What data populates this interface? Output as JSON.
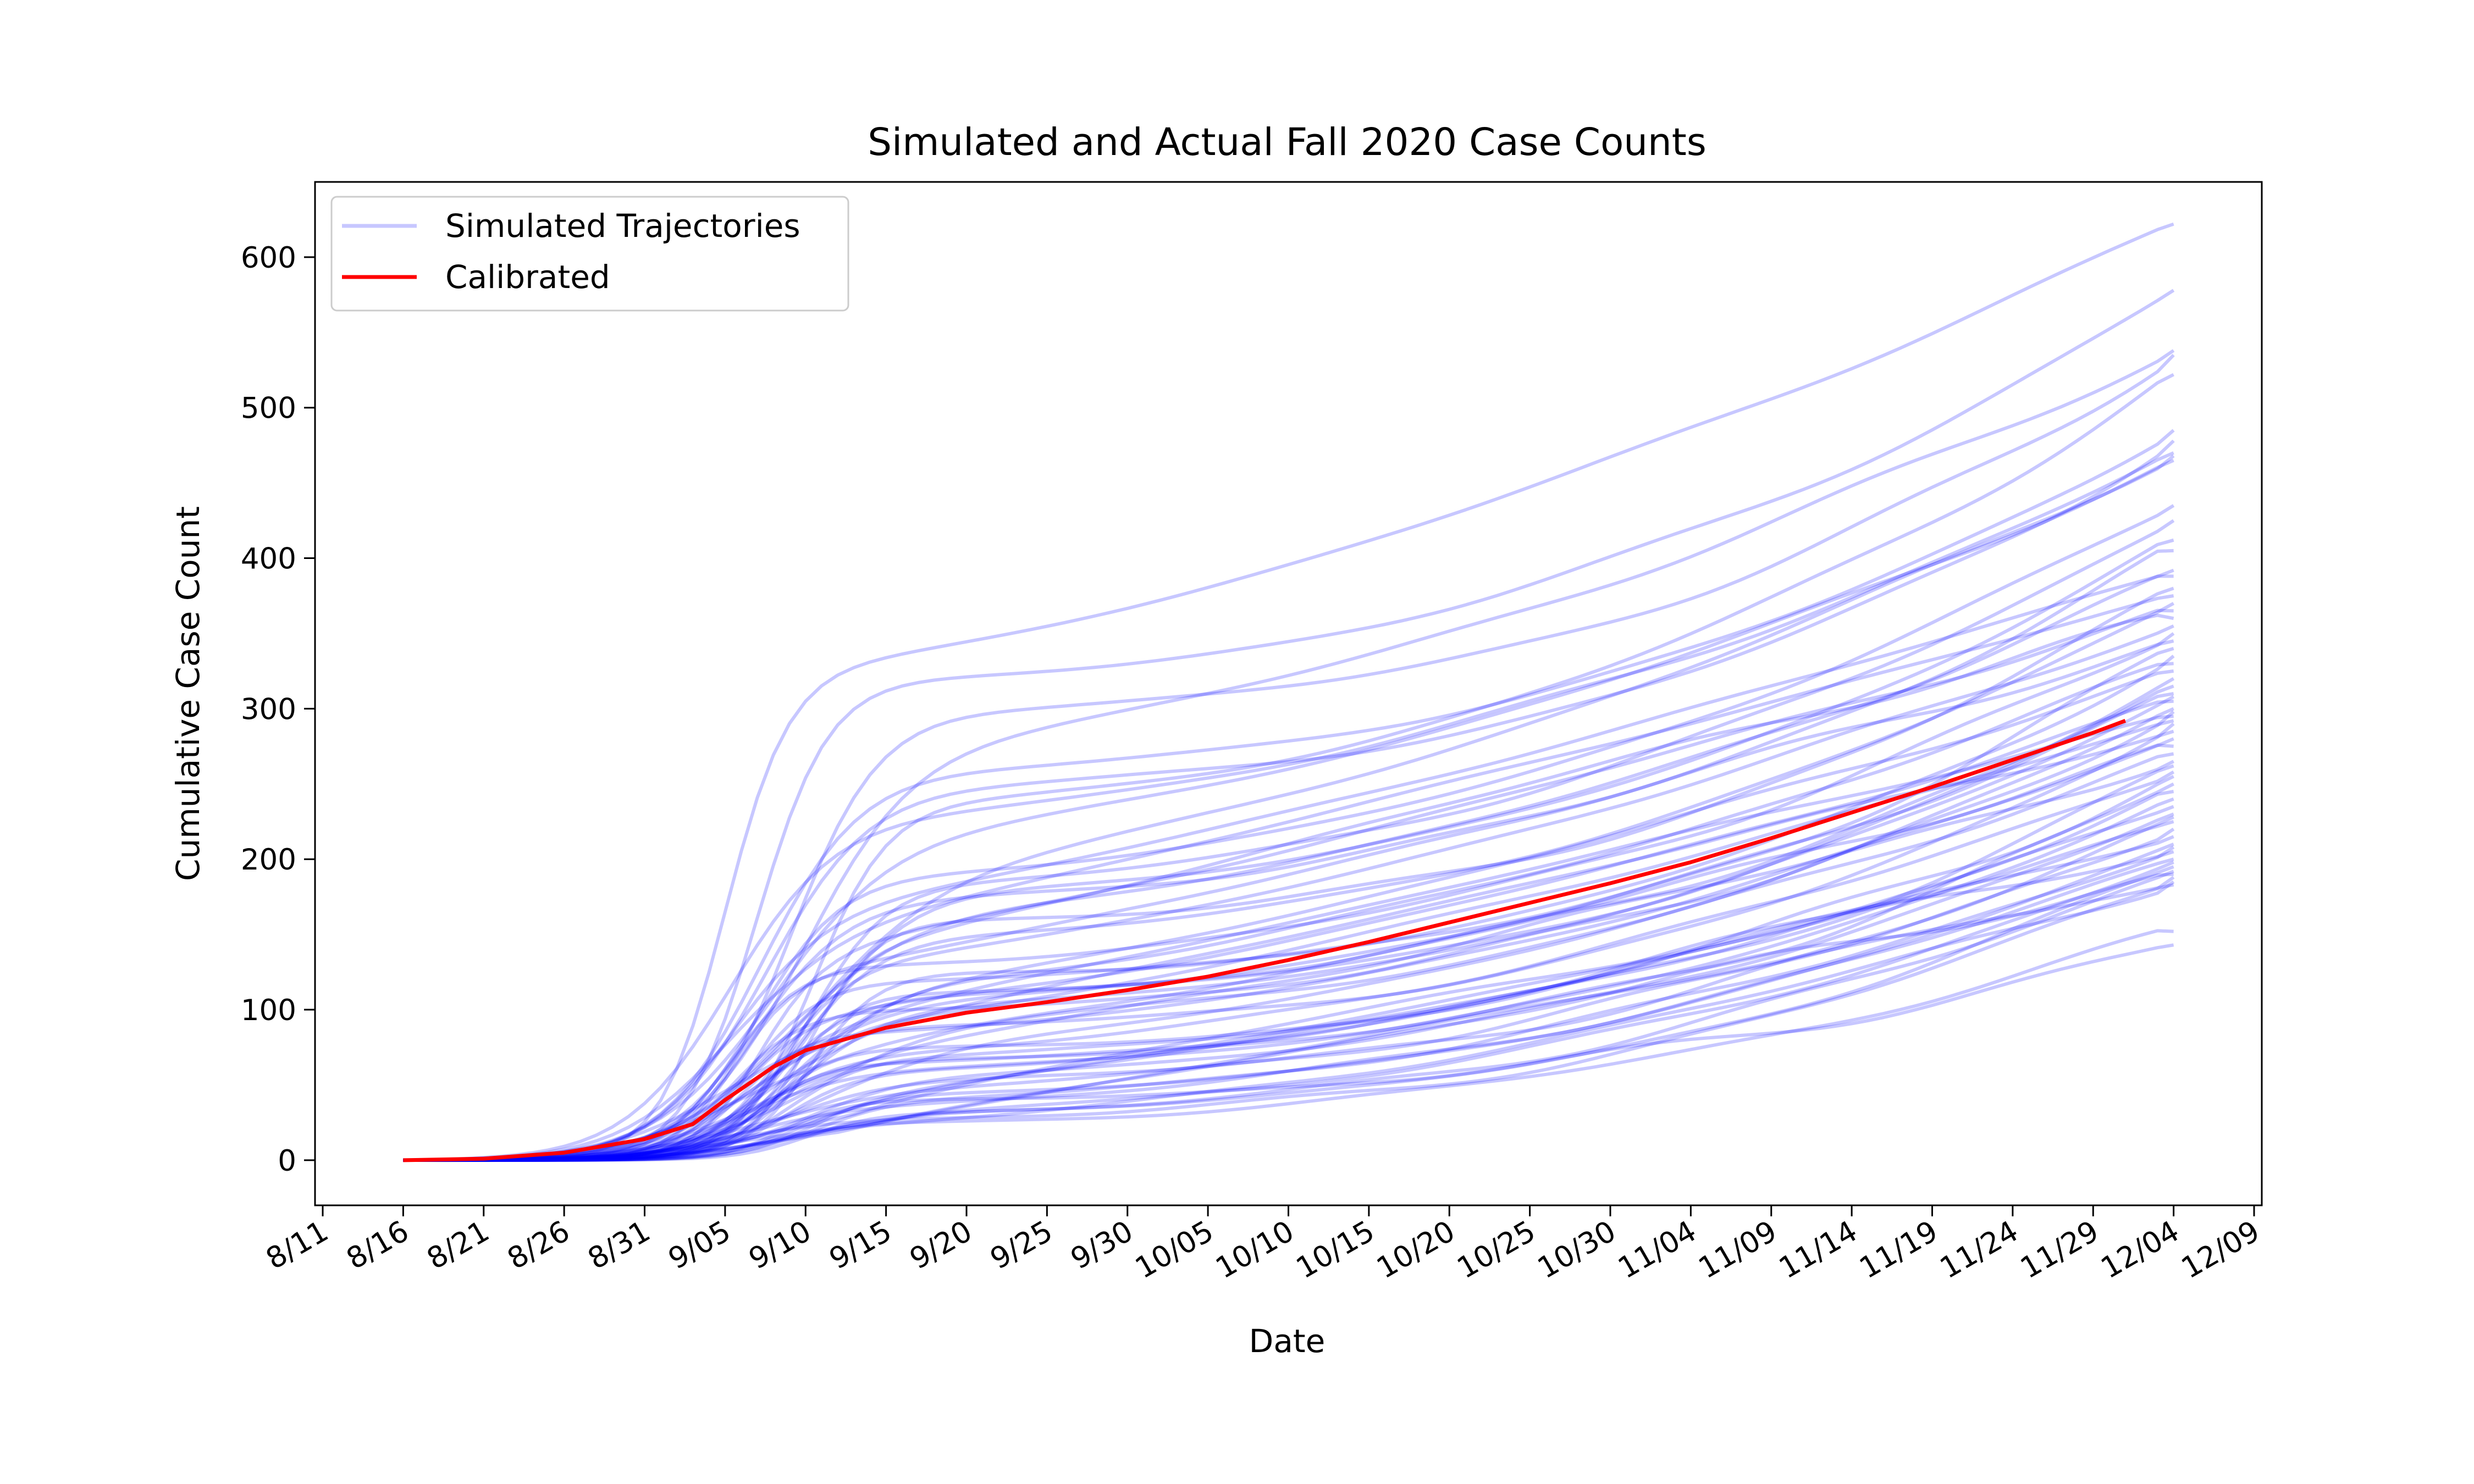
{
  "chart_data": {
    "type": "line",
    "title": "Simulated and Actual Fall 2020 Case Counts",
    "xlabel": "Date",
    "ylabel": "Cumulative Case Count",
    "x_ticks": [
      "8/11",
      "8/16",
      "8/21",
      "8/26",
      "8/31",
      "9/05",
      "9/10",
      "9/15",
      "9/20",
      "9/25",
      "9/30",
      "10/05",
      "10/10",
      "10/15",
      "10/20",
      "10/25",
      "10/30",
      "11/04",
      "11/09",
      "11/14",
      "11/19",
      "11/24",
      "11/29",
      "12/04",
      "12/09"
    ],
    "y_ticks": [
      "0",
      "100",
      "200",
      "300",
      "400",
      "500",
      "600"
    ],
    "xlim": [
      "2020-08-11",
      "2020-12-09"
    ],
    "ylim": [
      -30,
      650
    ],
    "grid": false,
    "legend_position": "top-left",
    "legend": [
      {
        "label": "Simulated Trajectories",
        "color": "#0000ff",
        "opacity": 0.22
      },
      {
        "label": "Calibrated",
        "color": "#ff0000"
      }
    ],
    "series_colors": {
      "simulated": "#0000ff",
      "calibrated": "#ff0000"
    },
    "simulated_trajectories": {
      "x_start": "2020-08-16",
      "x_end": "2020-12-04",
      "final_values": [
        622,
        578,
        538,
        535,
        522,
        485,
        478,
        470,
        468,
        465,
        435,
        425,
        412,
        405,
        392,
        388,
        380,
        375,
        370,
        365,
        360,
        355,
        350,
        345,
        340,
        335,
        330,
        325,
        320,
        315,
        310,
        308,
        305,
        300,
        298,
        295,
        292,
        290,
        285,
        280,
        275,
        270,
        265,
        262,
        258,
        255,
        250,
        245,
        240,
        235,
        230,
        228,
        225,
        220,
        215,
        210,
        208,
        205,
        200,
        198,
        195,
        192,
        190,
        188,
        185,
        183,
        152,
        143
      ],
      "plateau_values": [
        330,
        320,
        280,
        300,
        240,
        260,
        250,
        230,
        200,
        220,
        190,
        185,
        180,
        175,
        170,
        165,
        160,
        155,
        150,
        145,
        140,
        135,
        130,
        128,
        125,
        120,
        118,
        115,
        112,
        110,
        108,
        105,
        102,
        100,
        98,
        95,
        92,
        90,
        88,
        85,
        82,
        80,
        78,
        75,
        72,
        70,
        68,
        65,
        62,
        60,
        58,
        55,
        52,
        50,
        48,
        45,
        42,
        40,
        38,
        36,
        34,
        32,
        30,
        28,
        26,
        24,
        25,
        40
      ]
    },
    "calibrated": {
      "x": [
        "2020-08-16",
        "2020-08-21",
        "2020-08-26",
        "2020-08-31",
        "2020-09-03",
        "2020-09-05",
        "2020-09-08",
        "2020-09-10",
        "2020-09-15",
        "2020-09-20",
        "2020-09-25",
        "2020-09-30",
        "2020-10-05",
        "2020-10-10",
        "2020-10-15",
        "2020-10-20",
        "2020-10-25",
        "2020-10-30",
        "2020-11-04",
        "2020-11-09",
        "2020-11-14",
        "2020-11-19",
        "2020-11-24",
        "2020-11-29",
        "2020-12-01"
      ],
      "y": [
        0,
        1,
        5,
        14,
        24,
        40,
        62,
        73,
        88,
        98,
        105,
        113,
        122,
        133,
        145,
        158,
        171,
        184,
        198,
        214,
        231,
        248,
        266,
        284,
        292
      ]
    }
  }
}
